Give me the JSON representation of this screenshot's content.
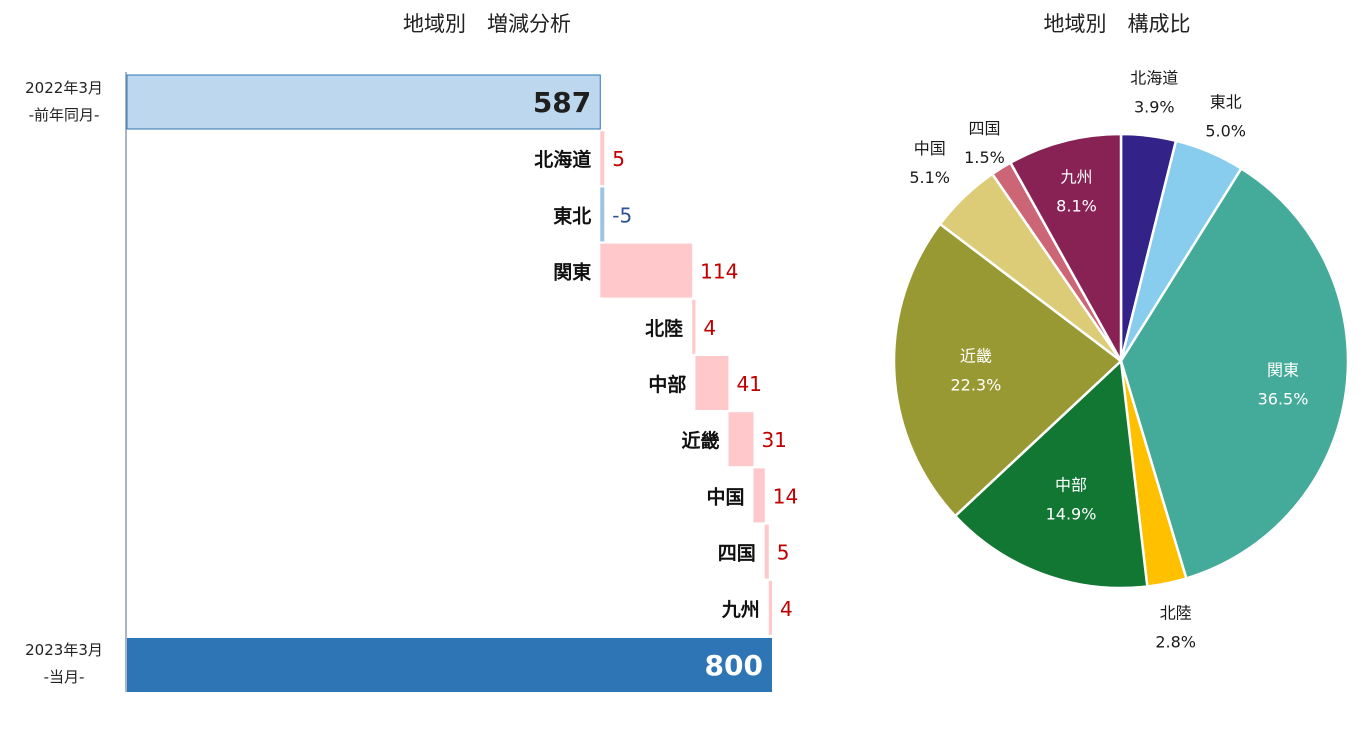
{
  "chart_data": [
    {
      "type": "waterfall",
      "title": "地域別　増減分析",
      "start": {
        "label_line1": "2022年3月",
        "label_line2": "-前年同月-",
        "value": 587
      },
      "end": {
        "label_line1": "2023年3月",
        "label_line2": "-当月-",
        "value": 800
      },
      "categories": [
        "北海道",
        "東北",
        "関東",
        "北陸",
        "中部",
        "近畿",
        "中国",
        "四国",
        "九州"
      ],
      "values": [
        5,
        -5,
        114,
        4,
        41,
        31,
        14,
        5,
        4
      ],
      "colors": {
        "start": "#bdd7ee",
        "end": "#2e75b6",
        "increase": "#ffc9cb",
        "decrease": "#9dc3e6",
        "increase_text": "#c00000",
        "decrease_text": "#2f5597"
      }
    },
    {
      "type": "pie",
      "title": "地域別　構成比",
      "categories": [
        "北海道",
        "東北",
        "関東",
        "北陸",
        "中部",
        "近畿",
        "中国",
        "四国",
        "九州"
      ],
      "values": [
        3.9,
        5.0,
        36.5,
        2.8,
        14.9,
        22.3,
        5.1,
        1.5,
        8.1
      ],
      "labels": [
        "3.9%",
        "5.0%",
        "36.5%",
        "2.8%",
        "14.9%",
        "22.3%",
        "5.1%",
        "1.5%",
        "8.1%"
      ],
      "colors": [
        "#332288",
        "#88ccee",
        "#44aa99",
        "#ffc000",
        "#117733",
        "#999933",
        "#ddcc77",
        "#cc6677",
        "#882255"
      ]
    }
  ]
}
